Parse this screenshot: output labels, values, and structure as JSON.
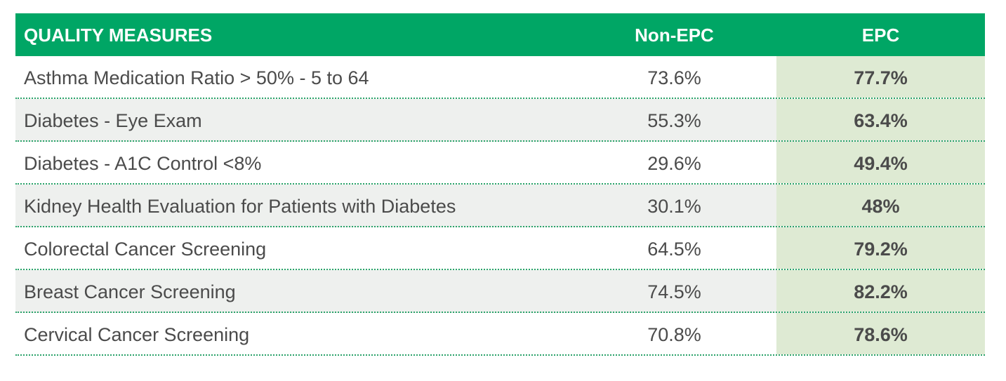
{
  "colors": {
    "header_bg": "#00a665",
    "header_text": "#ffffff",
    "row_shade": "#eef0ee",
    "epc_column_bg": "#deead3",
    "body_text": "#4b4b4b",
    "divider": "#2aa36a"
  },
  "chart_data": {
    "type": "table",
    "columns": [
      "QUALITY MEASURES",
      "Non-EPC",
      "EPC"
    ],
    "rows": [
      {
        "measure": "Asthma Medication Ratio > 50% - 5 to 64",
        "non_epc": "73.6%",
        "epc": "77.7%"
      },
      {
        "measure": "Diabetes - Eye Exam",
        "non_epc": "55.3%",
        "epc": "63.4%"
      },
      {
        "measure": "Diabetes - A1C Control <8%",
        "non_epc": "29.6%",
        "epc": "49.4%"
      },
      {
        "measure": "Kidney Health Evaluation for Patients with Diabetes",
        "non_epc": "30.1%",
        "epc": "48%"
      },
      {
        "measure": "Colorectal Cancer Screening",
        "non_epc": "64.5%",
        "epc": "79.2%"
      },
      {
        "measure": "Breast Cancer Screening",
        "non_epc": "74.5%",
        "epc": "82.2%"
      },
      {
        "measure": "Cervical Cancer Screening",
        "non_epc": "70.8%",
        "epc": "78.6%"
      }
    ]
  }
}
